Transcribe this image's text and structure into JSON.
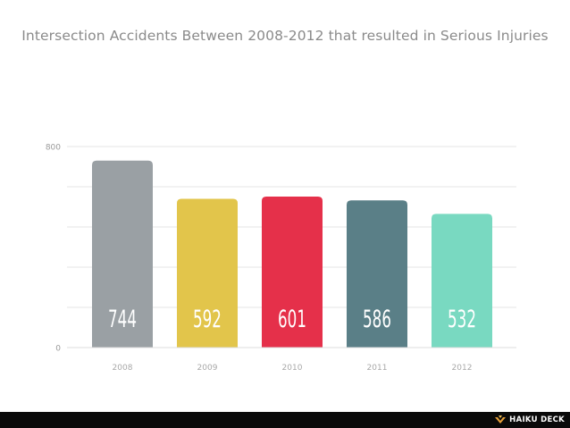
{
  "title": "Intersection Accidents Between 2008-2012 that resulted in Serious Injuries",
  "footer": {
    "brand": "HAIKU DECK",
    "logo_icon": "haiku-deck-logo-icon"
  },
  "chart_data": {
    "type": "bar",
    "title": "Intersection Accidents Between 2008-2012 that resulted in Serious Injuries",
    "categories": [
      "2008",
      "2009",
      "2010",
      "2011",
      "2012"
    ],
    "values": [
      744,
      592,
      601,
      586,
      532
    ],
    "data_labels": [
      "744",
      "592",
      "601",
      "586",
      "532"
    ],
    "bar_colors": [
      "#9aa0a4",
      "#e2c54b",
      "#e5304a",
      "#5a7f87",
      "#79d9c1"
    ],
    "ylim": [
      0,
      800
    ],
    "yticks": [
      "0",
      "800"
    ],
    "xlabel": "",
    "ylabel": "",
    "grid": true,
    "legend": "none"
  }
}
